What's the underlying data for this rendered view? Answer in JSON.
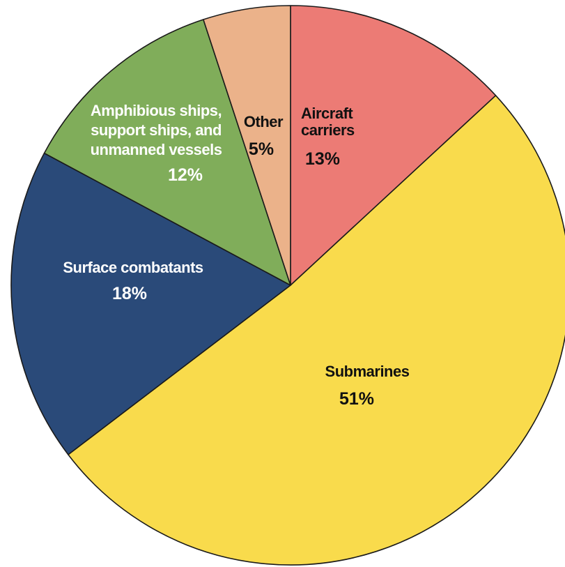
{
  "chart_data": {
    "type": "pie",
    "title": "",
    "start_angle_deg": 0,
    "direction": "clockwise",
    "slices": [
      {
        "name": "Aircraft carriers",
        "label_lines": [
          "Aircraft",
          "carriers"
        ],
        "value": 13,
        "value_label": "13%",
        "color": "#ec7b75",
        "text_color": "#111111"
      },
      {
        "name": "Submarines",
        "label_lines": [
          "Submarines"
        ],
        "value": 51,
        "value_label": "51%",
        "color": "#f9db4c",
        "text_color": "#111111"
      },
      {
        "name": "Surface combatants",
        "label_lines": [
          "Surface combatants"
        ],
        "value": 18,
        "value_label": "18%",
        "color": "#2a4a79",
        "text_color": "#ffffff"
      },
      {
        "name": "Amphibious ships, support ships, and unmanned vessels",
        "label_lines": [
          "Amphibious ships,",
          "support ships, and",
          "unmanned vessels"
        ],
        "value": 12,
        "value_label": "12%",
        "color": "#80ad5a",
        "text_color": "#ffffff"
      },
      {
        "name": "Other",
        "label_lines": [
          "Other"
        ],
        "value": 5,
        "value_label": "5%",
        "color": "#ebb28a",
        "text_color": "#111111"
      }
    ]
  }
}
